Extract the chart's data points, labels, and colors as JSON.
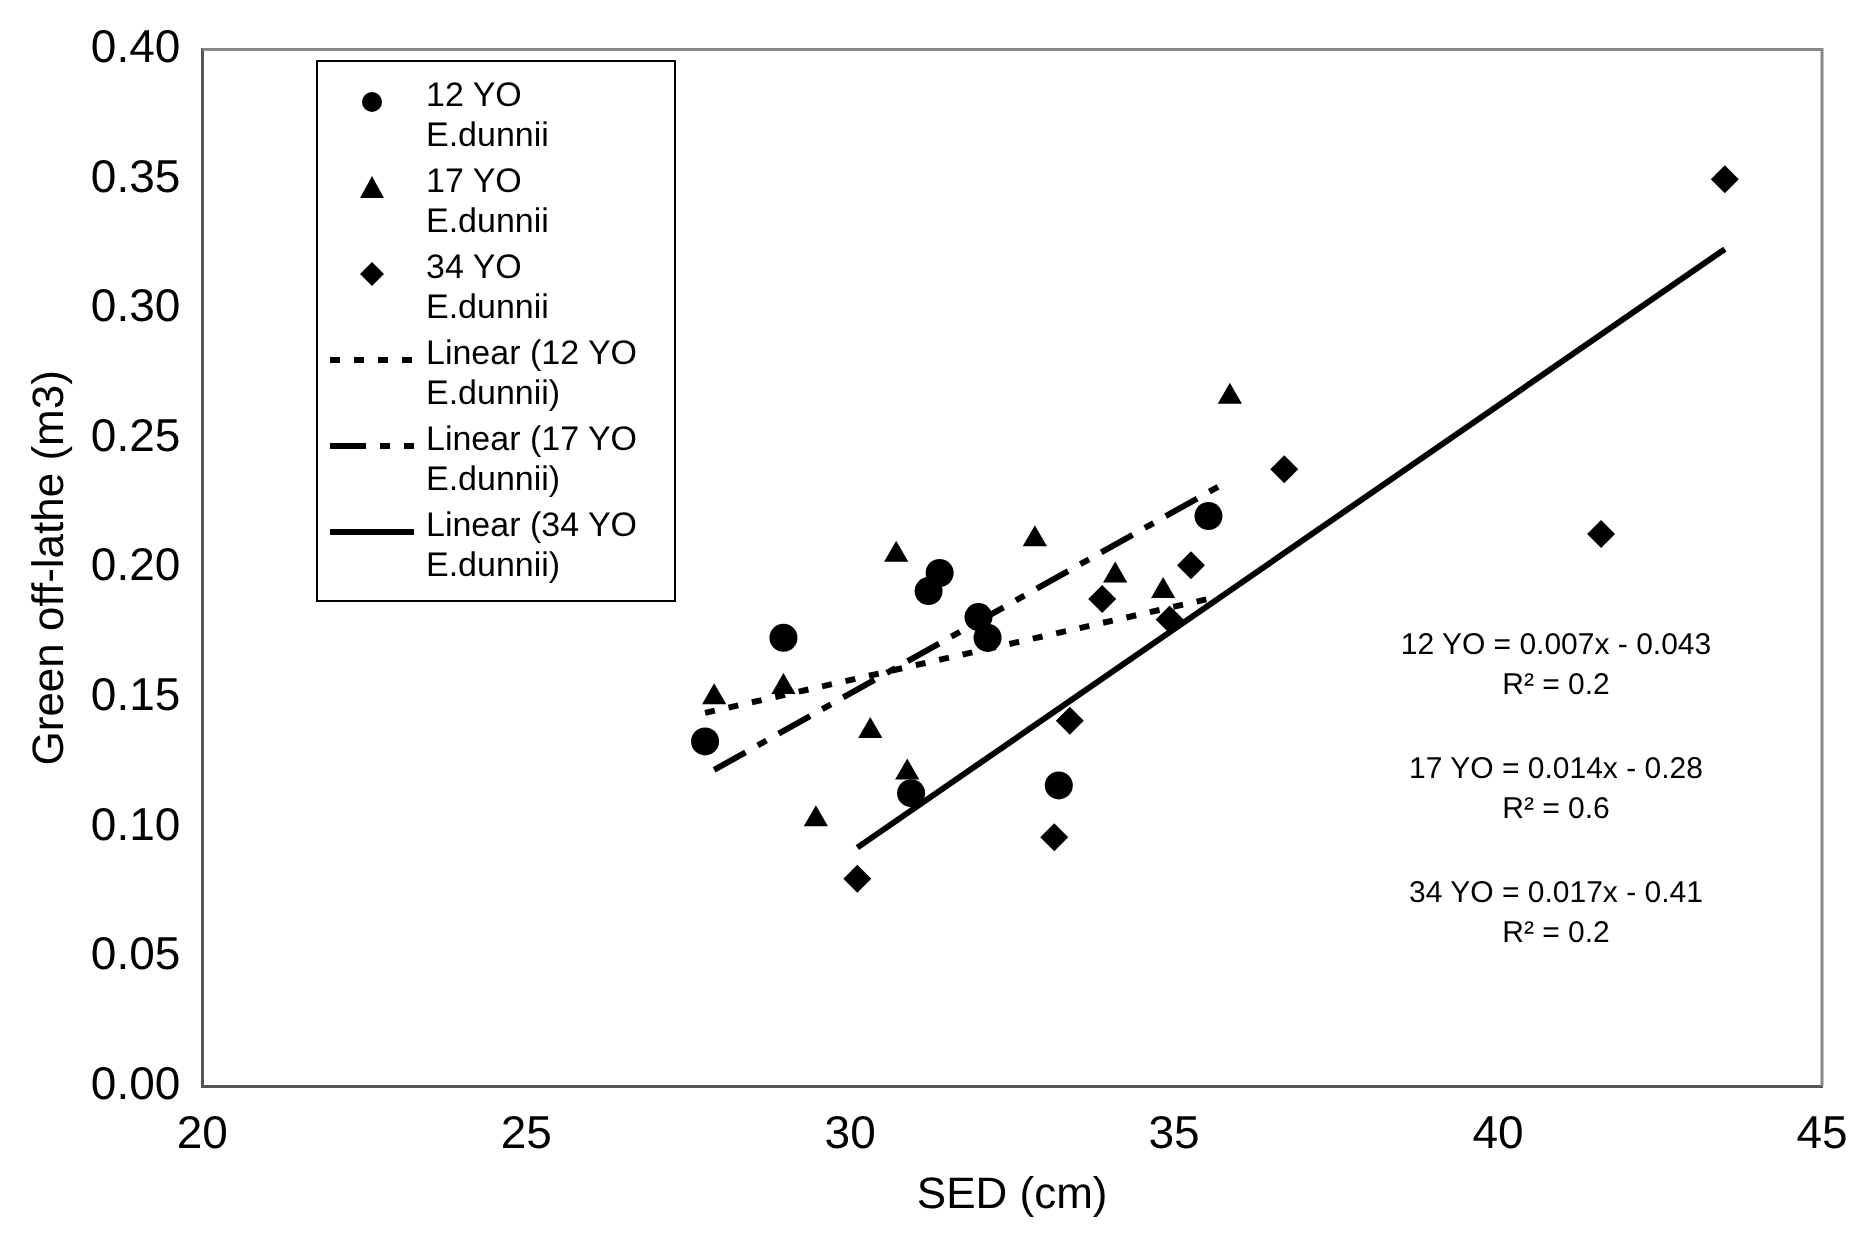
{
  "chart_data": {
    "type": "scatter",
    "xlabel": "SED (cm)",
    "ylabel": "Green off-lathe (m3)",
    "xlim": [
      20,
      45
    ],
    "xticks": [
      20,
      25,
      30,
      35,
      40,
      45
    ],
    "ylim": [
      0,
      0.4
    ],
    "yticks": [
      {
        "value": 0,
        "label": "0.00"
      },
      {
        "value": 0.05,
        "label": "0.05"
      },
      {
        "value": 0.1,
        "label": "0.10"
      },
      {
        "value": 0.15,
        "label": "0.15"
      },
      {
        "value": 0.2,
        "label": "0.20"
      },
      {
        "value": 0.25,
        "label": "0.25"
      },
      {
        "value": 0.3,
        "label": "0.30"
      },
      {
        "value": 0.35,
        "label": "0.35"
      },
      {
        "value": 0.4,
        "label": "0.40"
      }
    ],
    "grid": false,
    "legend": "top left",
    "series": [
      {
        "name": "12 YO E.dunnii",
        "type": "scatter",
        "marker": "circle",
        "color": "#000000",
        "x": [
          27.76,
          28.97,
          31.38,
          31.21,
          31.98,
          32.12,
          33.22,
          35.53,
          30.94
        ],
        "values": [
          0.133,
          0.173,
          0.198,
          0.191,
          0.181,
          0.173,
          0.116,
          0.22,
          0.113
        ]
      },
      {
        "name": "17 YO E.dunnii",
        "type": "scatter",
        "marker": "triangle",
        "color": "#000000",
        "x": [
          27.9,
          28.97,
          30.31,
          30.71,
          32.85,
          34.09,
          29.47,
          30.88,
          34.83,
          35.86
        ],
        "values": [
          0.15,
          0.154,
          0.137,
          0.205,
          0.211,
          0.197,
          0.103,
          0.121,
          0.191,
          0.266
        ]
      },
      {
        "name": "34 YO E.dunnii",
        "type": "scatter",
        "marker": "diamond",
        "color": "#000000",
        "x": [
          30.11,
          33.15,
          33.39,
          33.89,
          34.93,
          35.26,
          36.7,
          41.59,
          43.5
        ],
        "values": [
          0.08,
          0.096,
          0.141,
          0.188,
          0.18,
          0.201,
          0.238,
          0.213,
          0.35
        ]
      },
      {
        "name": "Linear (12 YO E.dunnii)",
        "type": "line",
        "marker": "none",
        "line_style": "dotted",
        "color": "#000000",
        "x": [
          27.76,
          35.53
        ],
        "values": [
          0.144,
          0.188
        ]
      },
      {
        "name": "Linear (17 YO E.dunnii)",
        "type": "line",
        "marker": "none",
        "line_style": "dashed",
        "color": "#000000",
        "x": [
          27.9,
          35.73
        ],
        "values": [
          0.122,
          0.232
        ]
      },
      {
        "name": "Linear (34 YO E.dunnii)",
        "type": "line",
        "marker": "none",
        "line_style": "solid",
        "color": "#000000",
        "x": [
          30.11,
          43.5
        ],
        "values": [
          0.092,
          0.323
        ]
      }
    ],
    "annotations": [
      "12 YO = 0.007x - 0.043",
      "R² = 0.2",
      "17 YO = 0.014x - 0.28",
      "R² = 0.6",
      "34 YO = 0.017x - 0.41",
      "R² = 0.2"
    ]
  }
}
